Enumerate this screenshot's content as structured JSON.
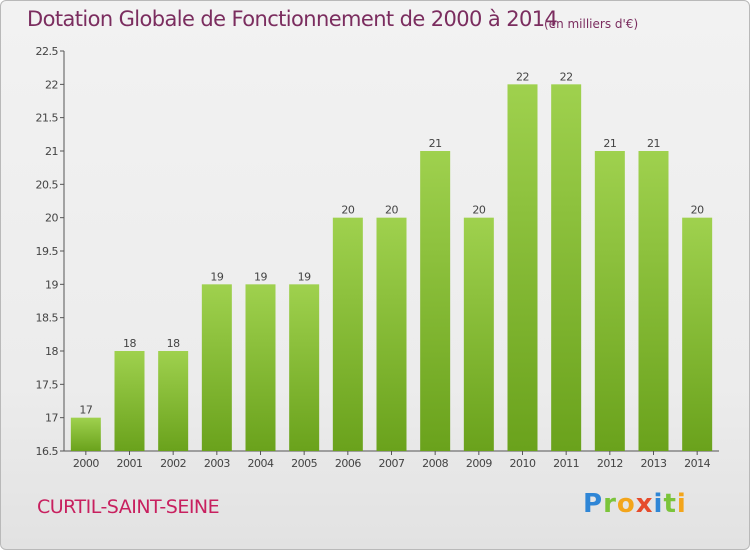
{
  "header": {
    "title": "Dotation Globale de Fonctionnement de 2000 à 2014",
    "unit_note": "(en milliers d'€)"
  },
  "footer": {
    "commune": "CURTIL-SAINT-SEINE",
    "brand": [
      "P",
      "r",
      "o",
      "x",
      "i",
      "t",
      "i"
    ]
  },
  "colors": {
    "bar_top": "#9fd14e",
    "bar_bottom": "#6aa21c",
    "title": "#7b2d5f",
    "commune": "#c8205f"
  },
  "chart_data": {
    "type": "bar",
    "title": "Dotation Globale de Fonctionnement de 2000 à 2014",
    "categories": [
      "2000",
      "2001",
      "2002",
      "2003",
      "2004",
      "2005",
      "2006",
      "2007",
      "2008",
      "2009",
      "2010",
      "2011",
      "2012",
      "2013",
      "2014"
    ],
    "values": [
      17,
      18,
      18,
      19,
      19,
      19,
      20,
      20,
      21,
      20,
      22,
      22,
      21,
      21,
      20
    ],
    "ylim": [
      16.5,
      22.5
    ],
    "yticks": [
      "16.5",
      "17",
      "17.5",
      "18",
      "18.5",
      "19",
      "19.5",
      "20",
      "20.5",
      "21",
      "21.5",
      "22",
      "22.5"
    ],
    "xlabel": "",
    "ylabel": "",
    "grid": false,
    "data_labels": true
  }
}
